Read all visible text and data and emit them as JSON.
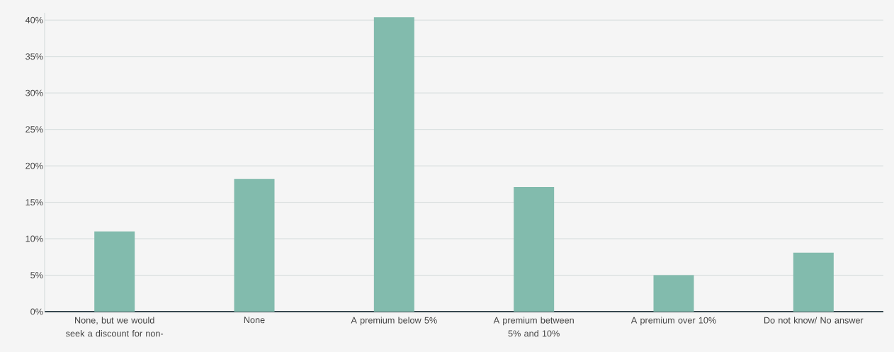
{
  "chart_data": {
    "type": "bar",
    "categories": [
      "None, but we would seek a discount for non-",
      "None",
      "A premium below 5%",
      "A premium between 5% and 10%",
      "A premium over 10%",
      "Do not know/ No answer"
    ],
    "values": [
      11,
      18.2,
      40.4,
      17.1,
      5,
      8.1
    ],
    "color": "#82bbad",
    "ylim": [
      0,
      41
    ],
    "yticks": [
      {
        "value": 0,
        "label": "0%"
      },
      {
        "value": 5,
        "label": "5%"
      },
      {
        "value": 10,
        "label": "10%"
      },
      {
        "value": 15,
        "label": "15%"
      },
      {
        "value": 20,
        "label": "20%"
      },
      {
        "value": 25,
        "label": "25%"
      },
      {
        "value": 30,
        "label": "30%"
      },
      {
        "value": 35,
        "label": "35%"
      },
      {
        "value": 40,
        "label": "40%"
      }
    ],
    "grid": "y"
  }
}
